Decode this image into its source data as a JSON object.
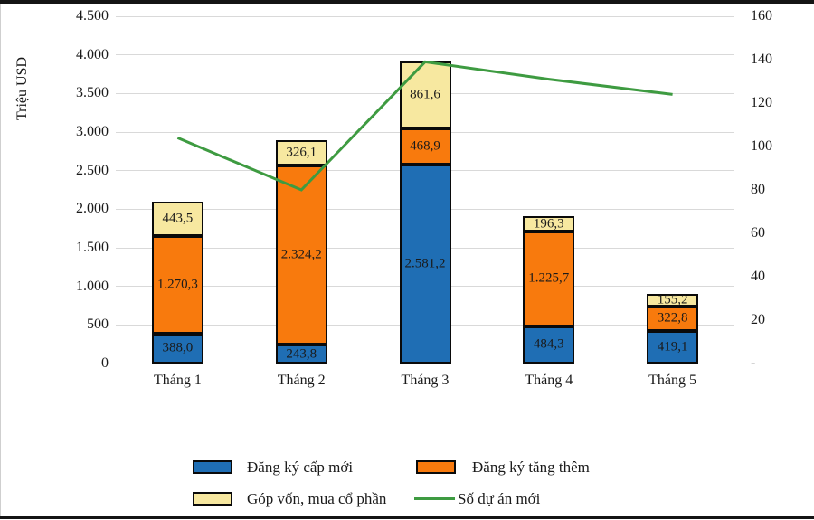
{
  "chart_data": {
    "type": "bar",
    "subtype": "stacked-bar-with-line",
    "categories": [
      "Tháng 1",
      "Tháng 2",
      "Tháng 3",
      "Tháng 4",
      "Tháng 5"
    ],
    "series": [
      {
        "name": "Đăng ký cấp mới",
        "type": "bar",
        "axis": "left",
        "color": "#1F6EB4",
        "values": [
          388.0,
          243.8,
          2581.2,
          484.3,
          419.1
        ],
        "labels": [
          "388,0",
          "243,8",
          "2.581,2",
          "484,3",
          "419,1"
        ]
      },
      {
        "name": "Đăng ký tăng thêm",
        "type": "bar",
        "axis": "left",
        "color": "#F87A0D",
        "values": [
          1270.3,
          2324.2,
          468.9,
          1225.7,
          322.8
        ],
        "labels": [
          "1.270,3",
          "2.324,2",
          "468,9",
          "1.225,7",
          "322,8"
        ]
      },
      {
        "name": "Góp vốn, mua cổ phần",
        "type": "bar",
        "axis": "left",
        "color": "#F7E8A0",
        "values": [
          443.5,
          326.1,
          861.6,
          196.3,
          155.2
        ],
        "labels": [
          "443,5",
          "326,1",
          "861,6",
          "196,3",
          "155,2"
        ]
      },
      {
        "name": "Số dự án mới",
        "type": "line",
        "axis": "right",
        "color": "#3E9B41",
        "values": [
          104,
          80,
          139,
          131,
          124
        ]
      }
    ],
    "left_axis": {
      "title": "Triệu USD",
      "min": 0,
      "max": 4500,
      "step": 500,
      "tick_labels": [
        "4.500",
        "4.000",
        "3.500",
        "3.000",
        "2.500",
        "2.000",
        "1.500",
        "1.000",
        "500",
        "0"
      ]
    },
    "right_axis": {
      "min": 0,
      "max": 160,
      "step": 20,
      "tick_labels": [
        "160",
        "140",
        "120",
        "100",
        "80",
        "60",
        "40",
        "20",
        "-"
      ]
    },
    "grid": "horizontal",
    "legend_position": "bottom",
    "colors": {
      "grid": "#d9d9d9",
      "bar_border": "#0a0a0a",
      "text": "#1a1a1a"
    }
  }
}
